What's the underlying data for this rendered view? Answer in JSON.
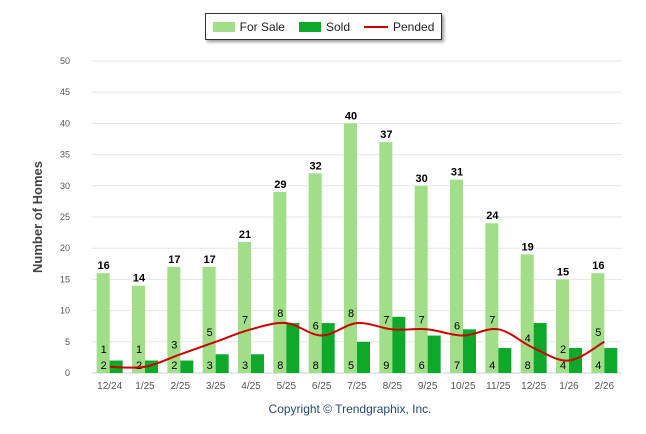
{
  "chart_data": {
    "type": "bar",
    "title": "",
    "xlabel": "",
    "ylabel": "Number of Homes",
    "ylim": [
      0,
      50
    ],
    "yticks": [
      0,
      5,
      10,
      15,
      20,
      25,
      30,
      35,
      40,
      45,
      50
    ],
    "grid": true,
    "legend_position": "top-center",
    "categories": [
      "12/24",
      "1/25",
      "2/25",
      "3/25",
      "4/25",
      "5/25",
      "6/25",
      "7/25",
      "8/25",
      "9/25",
      "10/25",
      "11/25",
      "12/25",
      "1/26",
      "2/26"
    ],
    "series": [
      {
        "name": "For Sale",
        "type": "bar",
        "color": "#a0de88",
        "values": [
          16,
          14,
          17,
          17,
          21,
          29,
          32,
          40,
          37,
          30,
          31,
          24,
          19,
          15,
          16
        ]
      },
      {
        "name": "Sold",
        "type": "bar",
        "color": "#0ea82a",
        "values": [
          2,
          2,
          2,
          3,
          3,
          8,
          8,
          5,
          9,
          6,
          7,
          4,
          8,
          4,
          4
        ]
      },
      {
        "name": "Pended",
        "type": "line",
        "color": "#cc0000",
        "values": [
          1,
          1,
          3,
          5,
          7,
          8,
          6,
          8,
          7,
          7,
          6,
          7,
          4,
          2,
          5
        ]
      }
    ]
  },
  "copyright": "Copyright © Trendgraphix, Inc."
}
